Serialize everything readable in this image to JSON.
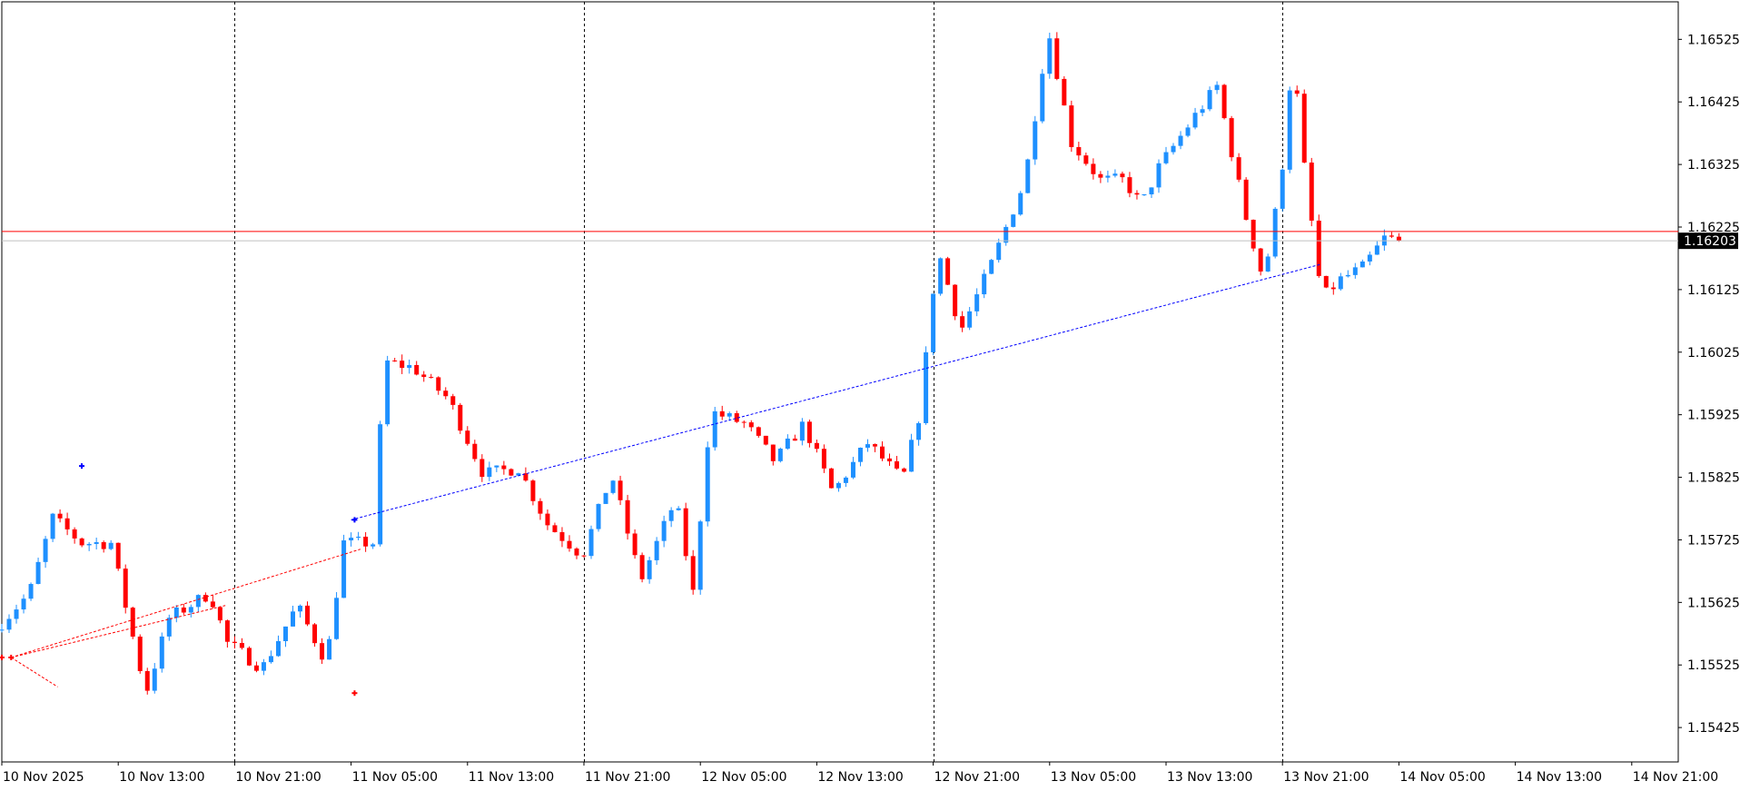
{
  "chart_data": {
    "type": "candlestick",
    "y_axis_ticks": [
      "1.16525",
      "1.16425",
      "1.16325",
      "1.16225",
      "1.16125",
      "1.16025",
      "1.15925",
      "1.15825",
      "1.15725",
      "1.15625",
      "1.15525",
      "1.15425"
    ],
    "ylim": [
      1.1537,
      1.16585
    ],
    "x_axis_ticks": [
      "10 Nov 2025",
      "10 Nov 13:00",
      "10 Nov 21:00",
      "11 Nov 05:00",
      "11 Nov 13:00",
      "11 Nov 21:00",
      "12 Nov 05:00",
      "12 Nov 13:00",
      "12 Nov 21:00",
      "13 Nov 05:00",
      "13 Nov 13:00",
      "13 Nov 21:00",
      "14 Nov 05:00",
      "14 Nov 13:00",
      "14 Nov 21:00"
    ],
    "current_price": "1.16203",
    "current_price_value": 1.16203,
    "horizontal_level": 1.16218,
    "session_separators": [
      "10 Nov 21:00",
      "11 Nov 21:00",
      "12 Nov 21:00",
      "13 Nov 21:00"
    ],
    "bullish_color": "#1E90FF",
    "bearish_color": "#FF0000",
    "trendlines": [
      {
        "color": "#FF0000",
        "points": [
          [
            0.08,
            1.15537
          ],
          [
            3.08,
            1.1571
          ]
        ]
      },
      {
        "color": "#FF0000",
        "points": [
          [
            0.08,
            1.15537
          ],
          [
            1.92,
            1.1562
          ]
        ]
      },
      {
        "color": "#FF0000",
        "points": [
          [
            0.08,
            1.15537
          ],
          [
            0.48,
            1.1549
          ]
        ]
      },
      {
        "color": "#0000FF",
        "points": [
          [
            3.0,
            1.15757
          ],
          [
            11.32,
            1.16165
          ]
        ]
      }
    ],
    "markers": [
      {
        "x": 0.0,
        "price": 1.15537,
        "color": "#FF0000"
      },
      {
        "x": 0.08,
        "price": 1.15537,
        "color": "#FF0000"
      },
      {
        "x": 0.0,
        "price": 1.15843,
        "color": "#0000FF"
      },
      {
        "x": 3.03,
        "price": 1.15757,
        "color": "#0000FF"
      },
      {
        "x": 3.03,
        "price": 1.1548,
        "color": "#FF0000"
      }
    ],
    "anchor_points": [
      {
        "x": 0,
        "price": 1.1558
      },
      {
        "x": 0.3,
        "price": 1.1564
      },
      {
        "x": 0.5,
        "price": 1.1576
      },
      {
        "x": 0.75,
        "price": 1.1572
      },
      {
        "x": 1.0,
        "price": 1.1572
      },
      {
        "x": 1.3,
        "price": 1.1548
      },
      {
        "x": 1.5,
        "price": 1.156
      },
      {
        "x": 1.85,
        "price": 1.1564
      },
      {
        "x": 2.0,
        "price": 1.1556
      },
      {
        "x": 2.3,
        "price": 1.1552
      },
      {
        "x": 2.6,
        "price": 1.1562
      },
      {
        "x": 2.85,
        "price": 1.1553
      },
      {
        "x": 3.0,
        "price": 1.1572
      },
      {
        "x": 3.25,
        "price": 1.1572
      },
      {
        "x": 3.35,
        "price": 1.1601
      },
      {
        "x": 3.6,
        "price": 1.16
      },
      {
        "x": 3.9,
        "price": 1.1595
      },
      {
        "x": 4.2,
        "price": 1.1583
      },
      {
        "x": 4.5,
        "price": 1.1584
      },
      {
        "x": 4.75,
        "price": 1.1575
      },
      {
        "x": 5.05,
        "price": 1.157
      },
      {
        "x": 5.3,
        "price": 1.1583
      },
      {
        "x": 5.55,
        "price": 1.1566
      },
      {
        "x": 5.85,
        "price": 1.1579
      },
      {
        "x": 6.0,
        "price": 1.1564
      },
      {
        "x": 6.15,
        "price": 1.1593
      },
      {
        "x": 6.45,
        "price": 1.1591
      },
      {
        "x": 6.7,
        "price": 1.1585
      },
      {
        "x": 6.95,
        "price": 1.1591
      },
      {
        "x": 7.2,
        "price": 1.158
      },
      {
        "x": 7.5,
        "price": 1.1588
      },
      {
        "x": 7.8,
        "price": 1.1582
      },
      {
        "x": 7.95,
        "price": 1.1593
      },
      {
        "x": 8.1,
        "price": 1.1619
      },
      {
        "x": 8.3,
        "price": 1.1606
      },
      {
        "x": 8.55,
        "price": 1.1616
      },
      {
        "x": 8.85,
        "price": 1.163
      },
      {
        "x": 9.05,
        "price": 1.1654
      },
      {
        "x": 9.25,
        "price": 1.1636
      },
      {
        "x": 9.5,
        "price": 1.163
      },
      {
        "x": 9.7,
        "price": 1.163
      },
      {
        "x": 9.85,
        "price": 1.1626
      },
      {
        "x": 10.0,
        "price": 1.1632
      },
      {
        "x": 10.3,
        "price": 1.164
      },
      {
        "x": 10.5,
        "price": 1.1645
      },
      {
        "x": 10.75,
        "price": 1.1624
      },
      {
        "x": 10.9,
        "price": 1.1614
      },
      {
        "x": 11.05,
        "price": 1.163
      },
      {
        "x": 11.15,
        "price": 1.165
      },
      {
        "x": 11.25,
        "price": 1.1632
      },
      {
        "x": 11.4,
        "price": 1.1611
      },
      {
        "x": 11.55,
        "price": 1.1614
      },
      {
        "x": 11.75,
        "price": 1.1616
      },
      {
        "x": 11.95,
        "price": 1.1621
      },
      {
        "x": 12.03,
        "price": 1.16203
      }
    ]
  }
}
